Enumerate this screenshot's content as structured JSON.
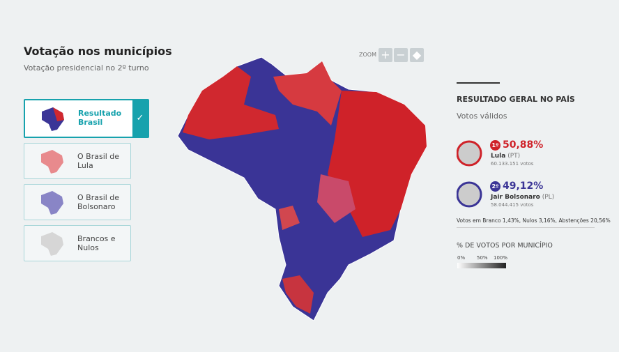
{
  "header": {
    "title": "Votação nos municípios",
    "subtitle": "Votação presidencial no 2º turno"
  },
  "zoom": {
    "label": "ZOOM"
  },
  "options": [
    {
      "label": "Resultado Brasil"
    },
    {
      "label": "O Brasil de Lula"
    },
    {
      "label": "O Brasil de Bolsonaro"
    },
    {
      "label": "Brancos e Nulos"
    }
  ],
  "results": {
    "title": "RESULTADO GERAL NO PAÍS",
    "subtitle": "Votos válidos",
    "candidates": [
      {
        "rank": "1º",
        "percent": "50,88%",
        "name": "Lula",
        "party": "(PT)",
        "votes": "60.133.151 votos"
      },
      {
        "rank": "2º",
        "percent": "49,12%",
        "name": "Jair Bolsonaro",
        "party": "(PL)",
        "votes": "58.044.415 votos"
      }
    ],
    "footnote": "Votos em Branco 1,43%, Nulos 3,16%, Abstenções 20,56%"
  },
  "legend": {
    "title": "% DE VOTOS POR MUNICÍPIO",
    "ticks": [
      "0%",
      "50%",
      "100%"
    ]
  }
}
